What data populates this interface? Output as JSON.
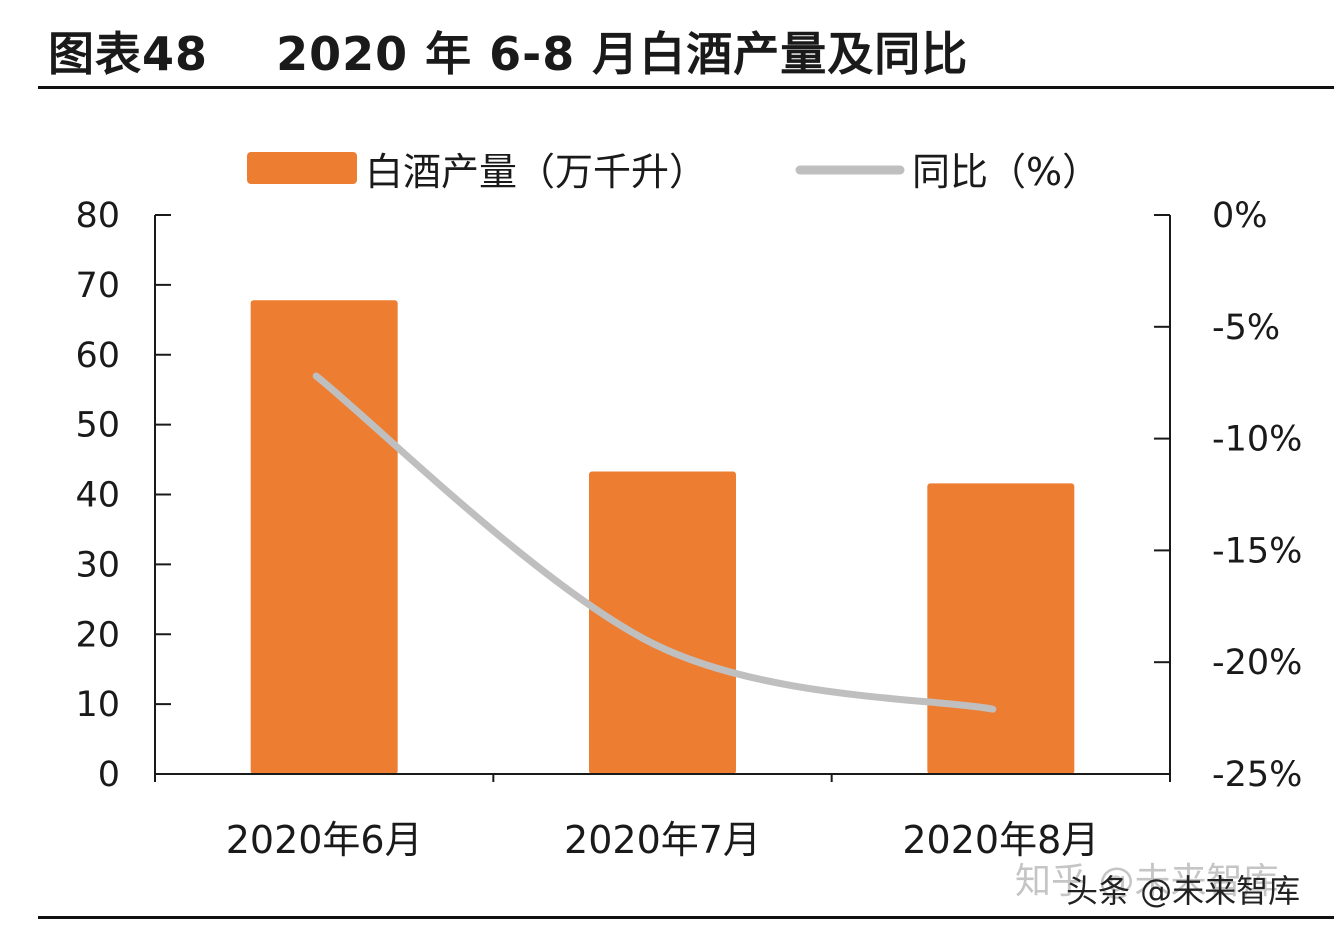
{
  "title": "图表48    2020 年 6-8 月白酒产量及同比",
  "watermarks": {
    "zhihu": "知乎 @未来智库",
    "toutiao": "头条 @未来智库"
  },
  "colors": {
    "bar": "#ED7D31",
    "line": "#BFBFBF",
    "axis": "#1a1a1a"
  },
  "chart_data": {
    "type": "bar",
    "categories": [
      "2020年6月",
      "2020年7月",
      "2020年8月"
    ],
    "series": [
      {
        "name": "白酒产量（万千升）",
        "type": "bar",
        "axis": "left",
        "values": [
          67.8,
          43.3,
          41.6
        ]
      },
      {
        "name": "同比（%）",
        "type": "line",
        "axis": "right",
        "smooth": true,
        "values": [
          -7.2,
          -19.2,
          -22.1
        ]
      }
    ],
    "y_left": {
      "min": 0,
      "max": 80,
      "step": 10,
      "ticks": [
        "0",
        "10",
        "20",
        "30",
        "40",
        "50",
        "60",
        "70",
        "80"
      ]
    },
    "y_right": {
      "min": -25,
      "max": 0,
      "step": 5,
      "ticks": [
        "-25%",
        "-20%",
        "-15%",
        "-10%",
        "-5%",
        "0%"
      ]
    },
    "legend_position": "top",
    "grid": false
  }
}
